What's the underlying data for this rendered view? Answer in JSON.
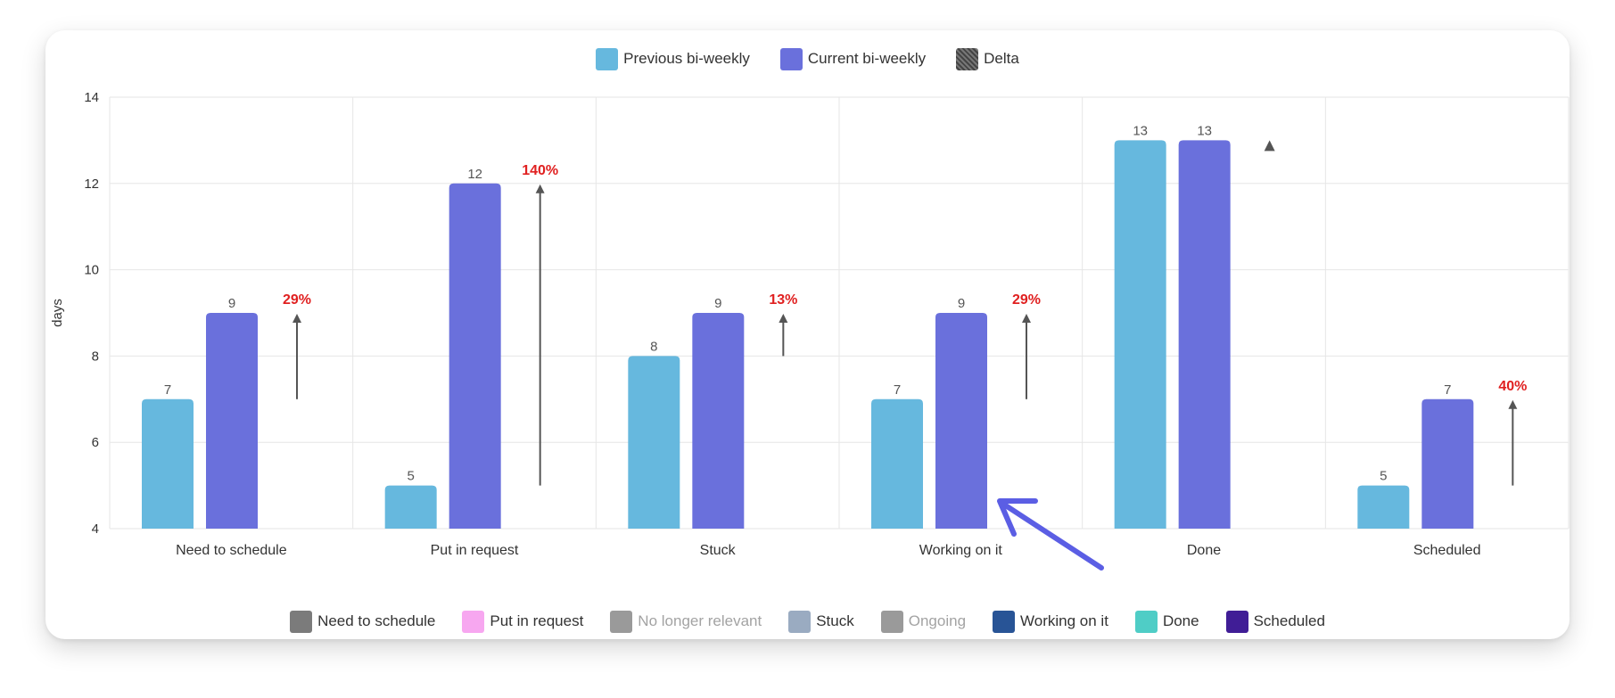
{
  "legend_top": [
    {
      "label": "Previous bi-weekly",
      "color": "#66b8de"
    },
    {
      "label": "Current bi-weekly",
      "color": "#6a70dc"
    },
    {
      "label": "Delta",
      "color": "#555555"
    }
  ],
  "legend_bottom": [
    {
      "label": "Need to schedule",
      "color": "#7b7b7b",
      "inactive": false
    },
    {
      "label": "Put in request",
      "color": "#f7a7f0",
      "inactive": false
    },
    {
      "label": "No longer relevant",
      "color": "#9a9a9a",
      "inactive": true
    },
    {
      "label": "Stuck",
      "color": "#9aabc1",
      "inactive": false
    },
    {
      "label": "Ongoing",
      "color": "#9a9a9a",
      "inactive": true
    },
    {
      "label": "Working on it",
      "color": "#285496",
      "inactive": false
    },
    {
      "label": "Done",
      "color": "#4fcdc6",
      "inactive": false
    },
    {
      "label": "Scheduled",
      "color": "#401d96",
      "inactive": false
    }
  ],
  "chart_data": {
    "type": "bar",
    "ylabel": "days",
    "ylim": [
      4,
      14
    ],
    "yticks": [
      "4",
      "6",
      "8",
      "10",
      "12",
      "14"
    ],
    "grid": true,
    "categories": [
      "Need to schedule",
      "Put in request",
      "Stuck",
      "Working on it",
      "Done",
      "Scheduled"
    ],
    "series": [
      {
        "name": "Previous bi-weekly",
        "color": "#66b8de",
        "values": [
          7,
          5,
          8,
          7,
          13,
          5
        ]
      },
      {
        "name": "Current bi-weekly",
        "color": "#6a70dc",
        "values": [
          9,
          12,
          9,
          9,
          13,
          7
        ]
      }
    ],
    "delta": {
      "name": "Delta",
      "labels": [
        "29%",
        "140%",
        "13%",
        "29%",
        "",
        "40%"
      ]
    },
    "annotation": "arrow pointing to Working on it current bi-weekly bar"
  }
}
